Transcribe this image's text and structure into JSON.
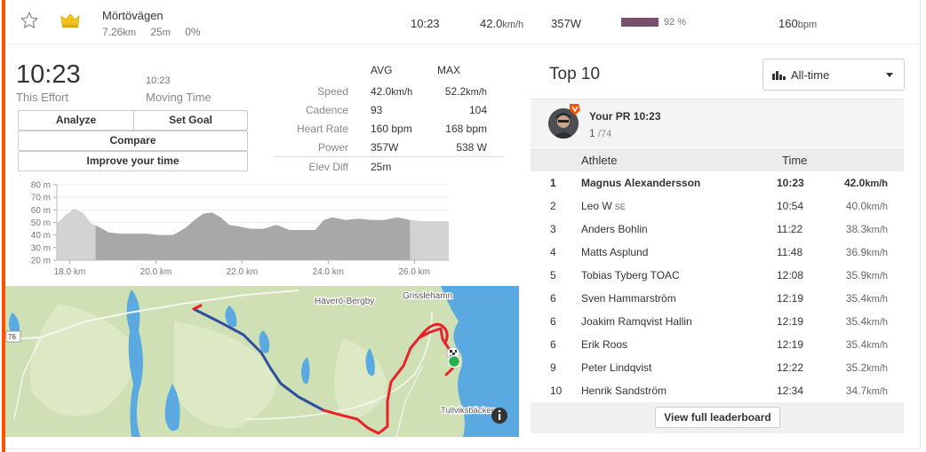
{
  "colors": {
    "accent": "#fc5200",
    "power_bar": "#78506e",
    "route_blue": "#2f4f9e",
    "route_red": "#e8212b",
    "water": "#5aa9e0",
    "land": "#cfe0b4"
  },
  "segment": {
    "name": "Mörtövägen",
    "distance": "7.26",
    "distance_unit": "km",
    "elevation": "25",
    "elevation_unit": "m",
    "grade": "0%",
    "time": "10:23",
    "speed": "42.0",
    "speed_unit": "km/h",
    "power": "357W",
    "power_percent_label": "92 %",
    "power_percent": 92,
    "heart_rate": "160",
    "heart_rate_unit": "bpm",
    "icons": {
      "favorite": "star-icon",
      "achievement": "crown-icon"
    }
  },
  "effort": {
    "time": "10:23",
    "time_label": "This Effort",
    "moving_time": "10:23",
    "moving_label": "Moving Time"
  },
  "buttons": {
    "analyze": "Analyze",
    "set_goal": "Set Goal",
    "compare": "Compare",
    "improve": "Improve your time"
  },
  "stats": {
    "avg_header": "AVG",
    "max_header": "MAX",
    "rows": [
      {
        "label": "Speed",
        "avg": "42.0",
        "avg_unit": "km/h",
        "max": "52.2",
        "max_unit": "km/h"
      },
      {
        "label": "Cadence",
        "avg": "93",
        "avg_unit": "",
        "max": "104",
        "max_unit": ""
      },
      {
        "label": "Heart Rate",
        "avg": "160 bpm",
        "avg_unit": "",
        "max": "168 bpm",
        "max_unit": ""
      },
      {
        "label": "Power",
        "avg": "357W",
        "avg_unit": "",
        "max": "538 W",
        "max_unit": ""
      },
      {
        "label": "Elev Diff",
        "avg": "25m",
        "avg_unit": "",
        "max": "",
        "max_unit": ""
      }
    ]
  },
  "chart_data": {
    "type": "area",
    "title": "",
    "xlabel": "",
    "ylabel": "",
    "x_unit": "km",
    "y_unit": "m",
    "xlim": [
      17.7,
      26.8
    ],
    "ylim": [
      20,
      80
    ],
    "x_ticks": [
      "18.0 km",
      "20.0 km",
      "22.0 km",
      "24.0 km",
      "26.0 km"
    ],
    "y_ticks": [
      "80 m",
      "70 m",
      "60 m",
      "50 m",
      "40 m",
      "30 m",
      "20 m"
    ],
    "highlight_range": [
      18.6,
      25.9
    ],
    "x": [
      17.7,
      17.9,
      18.1,
      18.3,
      18.5,
      18.7,
      18.9,
      19.2,
      19.5,
      19.8,
      20.1,
      20.4,
      20.7,
      20.9,
      21.1,
      21.3,
      21.5,
      21.7,
      21.9,
      22.2,
      22.5,
      22.8,
      23.1,
      23.3,
      23.5,
      23.7,
      23.9,
      24.1,
      24.4,
      24.7,
      25.0,
      25.3,
      25.6,
      25.9,
      26.2,
      26.5,
      26.8
    ],
    "y": [
      49,
      56,
      61,
      58,
      49,
      46,
      42,
      41,
      41,
      41,
      40,
      40,
      46,
      52,
      57,
      58,
      54,
      48,
      47,
      45,
      45,
      48,
      44,
      44,
      44,
      44,
      52,
      54,
      52,
      53,
      52,
      52,
      54,
      52,
      51,
      51,
      51
    ]
  },
  "map": {
    "labels": {
      "place1": "Häverö-Bergby",
      "place2": "Grisslehamn",
      "place3": "Tullviksbäcken",
      "road": "76"
    },
    "icons": {
      "info": "info-icon",
      "start": "start-marker-icon",
      "finish": "finish-flag-icon"
    }
  },
  "leaderboard": {
    "title": "Top 10",
    "filter": "All-time",
    "pr_label": "Your PR",
    "pr_time": "10:23",
    "pr_rank": "1",
    "pr_total": "/74",
    "col_athlete": "Athlete",
    "col_time": "Time",
    "rows": [
      {
        "rank": "1",
        "athlete": "Magnus Alexandersson",
        "tag": "",
        "time": "10:23",
        "speed": "42.0",
        "unit": "km/h"
      },
      {
        "rank": "2",
        "athlete": "Leo W",
        "tag": "SE",
        "time": "10:54",
        "speed": "40.0",
        "unit": "km/h"
      },
      {
        "rank": "3",
        "athlete": "Anders Bohlin",
        "tag": "",
        "time": "11:22",
        "speed": "38.3",
        "unit": "km/h"
      },
      {
        "rank": "4",
        "athlete": "Matts Asplund",
        "tag": "",
        "time": "11:48",
        "speed": "36.9",
        "unit": "km/h"
      },
      {
        "rank": "5",
        "athlete": "Tobias Tyberg TOAC",
        "tag": "",
        "time": "12:08",
        "speed": "35.9",
        "unit": "km/h"
      },
      {
        "rank": "6",
        "athlete": "Sven Hammarström",
        "tag": "",
        "time": "12:19",
        "speed": "35.4",
        "unit": "km/h"
      },
      {
        "rank": "6",
        "athlete": "Joakim Ramqvist Hallin",
        "tag": "",
        "time": "12:19",
        "speed": "35.4",
        "unit": "km/h"
      },
      {
        "rank": "6",
        "athlete": "Erik Roos",
        "tag": "",
        "time": "12:19",
        "speed": "35.4",
        "unit": "km/h"
      },
      {
        "rank": "9",
        "athlete": "Peter Lindqvist",
        "tag": "",
        "time": "12:22",
        "speed": "35.2",
        "unit": "km/h"
      },
      {
        "rank": "10",
        "athlete": "Henrik Sandström",
        "tag": "",
        "time": "12:34",
        "speed": "34.7",
        "unit": "km/h"
      }
    ],
    "view_full": "View full leaderboard"
  }
}
